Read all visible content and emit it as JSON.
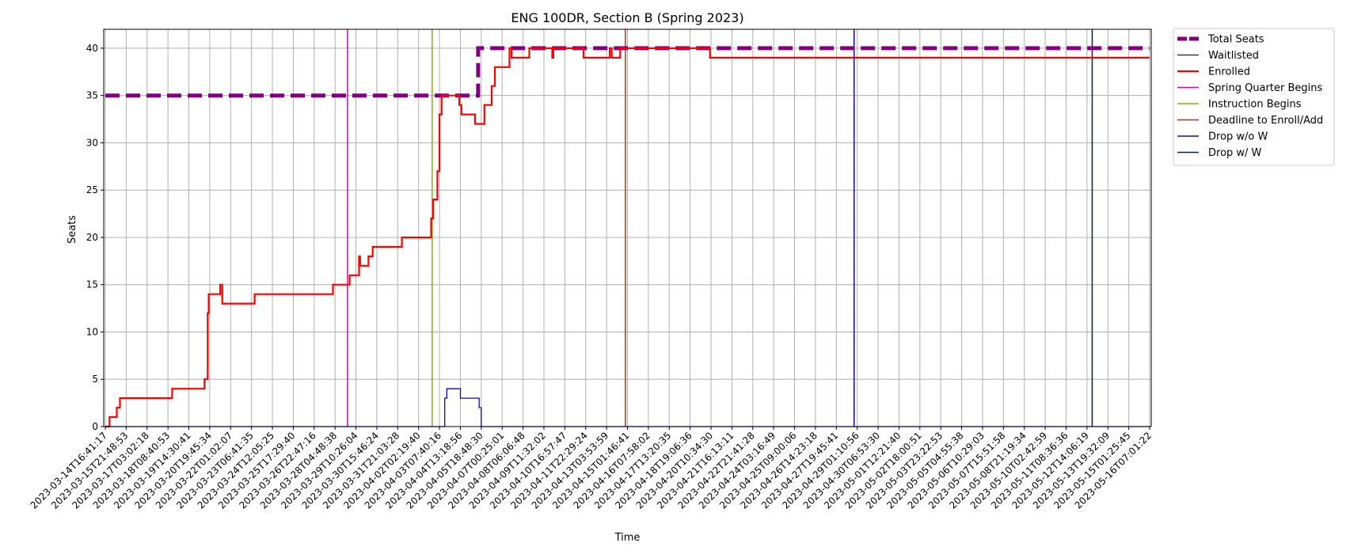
{
  "chart_data": {
    "type": "line",
    "title": "ENG 100DR, Section B (Spring 2023)",
    "xlabel": "Time",
    "ylabel": "Seats",
    "ylim": [
      0,
      42
    ],
    "yticks": [
      0,
      5,
      10,
      15,
      20,
      25,
      30,
      35,
      40
    ],
    "grid": true,
    "legend_position": "outside top-right",
    "x_tick_labels": [
      "2023-03-14T16:41:17",
      "2023-03-15T21:48:53",
      "2023-03-17T03:02:18",
      "2023-03-18T08:40:53",
      "2023-03-19T14:30:41",
      "2023-03-20T19:45:34",
      "2023-03-22T01:02:07",
      "2023-03-23T06:41:35",
      "2023-03-24T12:05:25",
      "2023-03-25T17:29:40",
      "2023-03-26T22:47:16",
      "2023-03-28T04:48:38",
      "2023-03-29T10:26:04",
      "2023-03-30T15:46:24",
      "2023-03-31T21:03:28",
      "2023-04-02T02:19:40",
      "2023-04-03T07:40:16",
      "2023-04-04T13:18:56",
      "2023-04-05T18:48:30",
      "2023-04-07T00:25:01",
      "2023-04-08T06:06:48",
      "2023-04-09T11:32:02",
      "2023-04-10T16:57:47",
      "2023-04-11T22:29:24",
      "2023-04-13T03:53:59",
      "2023-04-15T01:46:41",
      "2023-04-16T07:58:02",
      "2023-04-17T13:20:35",
      "2023-04-18T19:06:36",
      "2023-04-20T10:34:30",
      "2023-04-21T16:13:11",
      "2023-04-22T21:41:28",
      "2023-04-24T03:16:49",
      "2023-04-25T09:00:06",
      "2023-04-26T14:23:18",
      "2023-04-27T19:45:41",
      "2023-04-29T01:10:56",
      "2023-04-30T06:53:30",
      "2023-05-01T12:21:40",
      "2023-05-02T18:00:51",
      "2023-05-03T23:22:53",
      "2023-05-05T04:55:38",
      "2023-05-06T10:29:03",
      "2023-05-07T15:51:58",
      "2023-05-08T21:19:34",
      "2023-05-10T02:42:59",
      "2023-05-11T08:36:36",
      "2023-05-12T14:06:19",
      "2023-05-13T19:32:09",
      "2023-05-15T01:25:45",
      "2023-05-16T07:01:22"
    ],
    "x_range_index": [
      0,
      50
    ],
    "series": [
      {
        "name": "Total Seats",
        "color": "#800080",
        "style": "dashed",
        "points": [
          [
            0,
            35
          ],
          [
            17.85,
            35
          ],
          [
            17.85,
            40
          ],
          [
            50,
            40
          ]
        ]
      },
      {
        "name": "Waitlisted",
        "color": "#0000ff",
        "style": "solid",
        "points": [
          [
            0,
            0
          ],
          [
            16.25,
            0
          ],
          [
            16.25,
            3
          ],
          [
            16.35,
            3
          ],
          [
            16.35,
            4
          ],
          [
            17,
            4
          ],
          [
            17,
            3
          ],
          [
            17.9,
            3
          ],
          [
            17.9,
            2
          ],
          [
            18,
            2
          ],
          [
            18,
            0
          ],
          [
            50,
            0
          ]
        ]
      },
      {
        "name": "Enrolled",
        "color": "#ff0000",
        "style": "solid",
        "points": [
          [
            0,
            0
          ],
          [
            0.2,
            0
          ],
          [
            0.2,
            1
          ],
          [
            0.55,
            1
          ],
          [
            0.55,
            2
          ],
          [
            0.7,
            2
          ],
          [
            0.7,
            3
          ],
          [
            3.2,
            3
          ],
          [
            3.2,
            4
          ],
          [
            4.75,
            4
          ],
          [
            4.75,
            5
          ],
          [
            4.9,
            5
          ],
          [
            4.9,
            12
          ],
          [
            4.95,
            12
          ],
          [
            4.95,
            14
          ],
          [
            5.5,
            14
          ],
          [
            5.5,
            15
          ],
          [
            5.6,
            15
          ],
          [
            5.6,
            13
          ],
          [
            7.15,
            13
          ],
          [
            7.15,
            14
          ],
          [
            10.9,
            14
          ],
          [
            10.9,
            15
          ],
          [
            11.7,
            15
          ],
          [
            11.7,
            16
          ],
          [
            12.15,
            16
          ],
          [
            12.15,
            18
          ],
          [
            12.2,
            18
          ],
          [
            12.2,
            17
          ],
          [
            12.6,
            17
          ],
          [
            12.6,
            18
          ],
          [
            12.8,
            18
          ],
          [
            12.8,
            19
          ],
          [
            14.2,
            19
          ],
          [
            14.2,
            20
          ],
          [
            15.6,
            20
          ],
          [
            15.6,
            22
          ],
          [
            15.7,
            22
          ],
          [
            15.7,
            24
          ],
          [
            15.9,
            24
          ],
          [
            15.9,
            27
          ],
          [
            16,
            27
          ],
          [
            16,
            33
          ],
          [
            16.1,
            33
          ],
          [
            16.1,
            35
          ],
          [
            16.95,
            35
          ],
          [
            16.95,
            34
          ],
          [
            17.05,
            34
          ],
          [
            17.05,
            33
          ],
          [
            17.7,
            33
          ],
          [
            17.7,
            32
          ],
          [
            18.15,
            32
          ],
          [
            18.15,
            34
          ],
          [
            18.5,
            34
          ],
          [
            18.5,
            36
          ],
          [
            18.65,
            36
          ],
          [
            18.65,
            38
          ],
          [
            19.35,
            38
          ],
          [
            19.35,
            40
          ],
          [
            19.45,
            40
          ],
          [
            19.45,
            39
          ],
          [
            20.3,
            39
          ],
          [
            20.3,
            40
          ],
          [
            21.4,
            40
          ],
          [
            21.4,
            39
          ],
          [
            21.45,
            39
          ],
          [
            21.45,
            40
          ],
          [
            22.9,
            40
          ],
          [
            22.9,
            39
          ],
          [
            24.15,
            39
          ],
          [
            24.15,
            40
          ],
          [
            24.25,
            40
          ],
          [
            24.25,
            39
          ],
          [
            24.65,
            39
          ],
          [
            24.65,
            40
          ],
          [
            28.95,
            40
          ],
          [
            28.95,
            39
          ],
          [
            50,
            39
          ]
        ]
      }
    ],
    "events": [
      {
        "name": "Spring Quarter Begins",
        "color": "#e000b0",
        "x_index": 11.6
      },
      {
        "name": "Instruction Begins",
        "color": "#88b000",
        "x_index": 15.65
      },
      {
        "name": "Deadline to Enroll/Add",
        "color": "#c03000",
        "x_index": 24.9
      },
      {
        "name": "Drop w/o W",
        "color": "#1a0a90",
        "x_index": 35.85
      },
      {
        "name": "Drop w/ W",
        "color": "#102040",
        "x_index": 47.25
      }
    ]
  }
}
